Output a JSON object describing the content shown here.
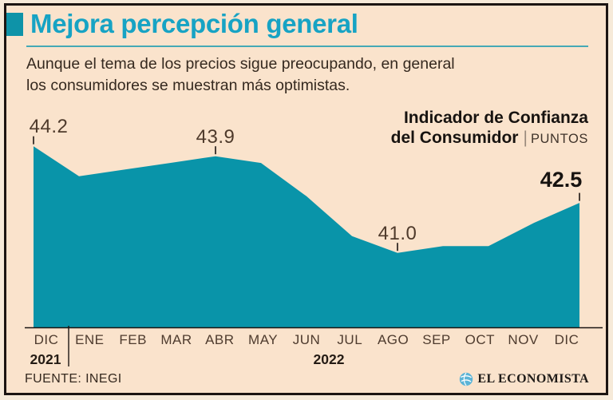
{
  "header": {
    "title": "Mejora percepción general",
    "subtitle_line1": "Aunque el tema de los precios sigue preocupando, en general",
    "subtitle_line2": "los consumidores se muestran más optimistas."
  },
  "indicator": {
    "name_line1": "Indicador de Confianza",
    "name_line2": "del Consumidor",
    "separator": "|",
    "unit": "PUNTOS"
  },
  "footer": {
    "source": "FUENTE: INEGI",
    "brand": "EL ECONOMISTA"
  },
  "colors": {
    "background": "#fae3cc",
    "frame": "#1b1512",
    "area": "#0994a9",
    "title_accent": "#17a3c4",
    "underline": "#45a9b6",
    "text_dark": "#171310",
    "text_brown": "#4e3a2b",
    "brand_icon": "#5cb4d6"
  },
  "chart_data": {
    "type": "area",
    "title": "Indicador de Confianza del Consumidor",
    "ylabel": "PUNTOS",
    "grid": false,
    "ylim": [
      38.75,
      44.8
    ],
    "x_axis": {
      "months": [
        "DIC",
        "ENE",
        "FEB",
        "MAR",
        "ABR",
        "MAY",
        "JUN",
        "JUL",
        "AGO",
        "SEP",
        "OCT",
        "NOV",
        "DIC"
      ],
      "year_left": "2021",
      "year_right": "2022"
    },
    "values": [
      44.2,
      43.3,
      43.5,
      43.7,
      43.9,
      43.7,
      42.7,
      41.5,
      41.0,
      41.2,
      41.2,
      41.9,
      42.5
    ],
    "labeled_points": [
      {
        "index": 0,
        "label": "44.2",
        "bold": false
      },
      {
        "index": 4,
        "label": "43.9",
        "bold": false
      },
      {
        "index": 8,
        "label": "41.0",
        "bold": false
      },
      {
        "index": 12,
        "label": "42.5",
        "bold": true
      }
    ],
    "area_color": "#0994a9"
  }
}
